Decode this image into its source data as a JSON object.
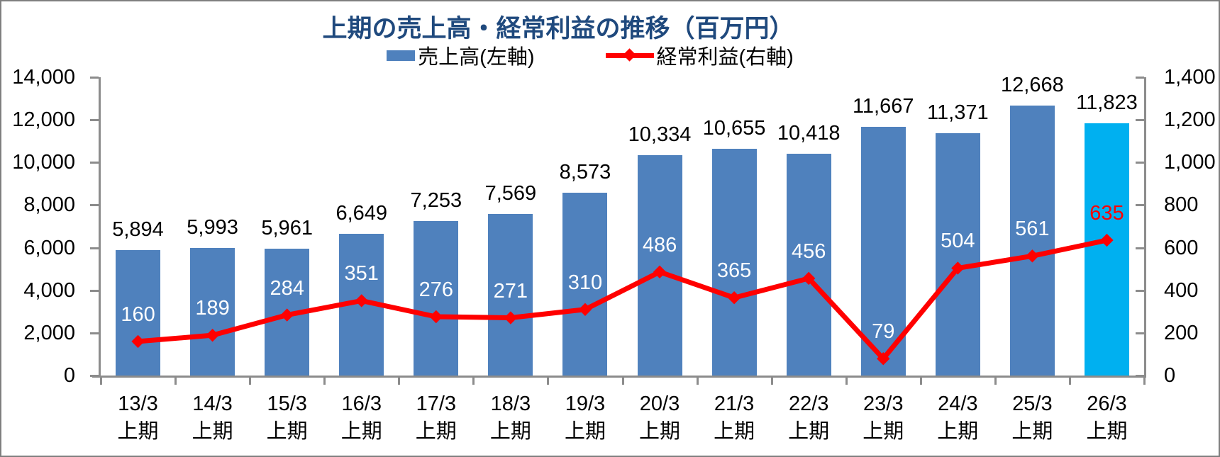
{
  "title": "上期の売上高・経常利益の推移（百万円）",
  "legend": {
    "sales_label": "売上高(左軸)",
    "profit_label": "経常利益(右軸)"
  },
  "colors": {
    "bar": "#4F81BD",
    "bar_highlight": "#00B0F0",
    "line": "#FF0000",
    "marker": "#FF0000",
    "title": "#1F497D",
    "axis": "#8C8C8C",
    "bar_value_label": "#000000",
    "profit_label_inside": "#FFFFFF",
    "profit_label_highlight": "#FF0000"
  },
  "chart_data": {
    "type": "combo-bar-line",
    "title": "上期の売上高・経常利益の推移（百万円）",
    "grid": false,
    "legend_position": "top",
    "categories_line1": [
      "13/3",
      "14/3",
      "15/3",
      "16/3",
      "17/3",
      "18/3",
      "19/3",
      "20/3",
      "21/3",
      "22/3",
      "23/3",
      "24/3",
      "25/3",
      "26/3"
    ],
    "categories_line2": [
      "上期",
      "上期",
      "上期",
      "上期",
      "上期",
      "上期",
      "上期",
      "上期",
      "上期",
      "上期",
      "上期",
      "上期",
      "上期",
      "上期"
    ],
    "series": [
      {
        "name": "売上高(左軸)",
        "type": "bar",
        "axis": "left",
        "values": [
          5894,
          5993,
          5961,
          6649,
          7253,
          7569,
          8573,
          10334,
          10655,
          10418,
          11667,
          11371,
          12668,
          11823
        ],
        "labels": [
          "5,894",
          "5,993",
          "5,961",
          "6,649",
          "7,253",
          "7,569",
          "8,573",
          "10,334",
          "10,655",
          "10,418",
          "11,667",
          "11,371",
          "12,668",
          "11,823"
        ],
        "highlight_index": 13
      },
      {
        "name": "経常利益(右軸)",
        "type": "line",
        "axis": "right",
        "values": [
          160,
          189,
          284,
          351,
          276,
          271,
          310,
          486,
          365,
          456,
          79,
          504,
          561,
          635
        ],
        "labels": [
          "160",
          "189",
          "284",
          "351",
          "276",
          "271",
          "310",
          "486",
          "365",
          "456",
          "79",
          "504",
          "561",
          "635"
        ],
        "highlight_index": 13
      }
    ],
    "left_axis": {
      "min": 0,
      "max": 14000,
      "step": 2000,
      "tick_labels": [
        "0",
        "2,000",
        "4,000",
        "6,000",
        "8,000",
        "10,000",
        "12,000",
        "14,000"
      ]
    },
    "right_axis": {
      "min": 0,
      "max": 1400,
      "step": 200,
      "tick_labels": [
        "0",
        "200",
        "400",
        "600",
        "800",
        "1,000",
        "1,200",
        "1,400"
      ]
    }
  }
}
